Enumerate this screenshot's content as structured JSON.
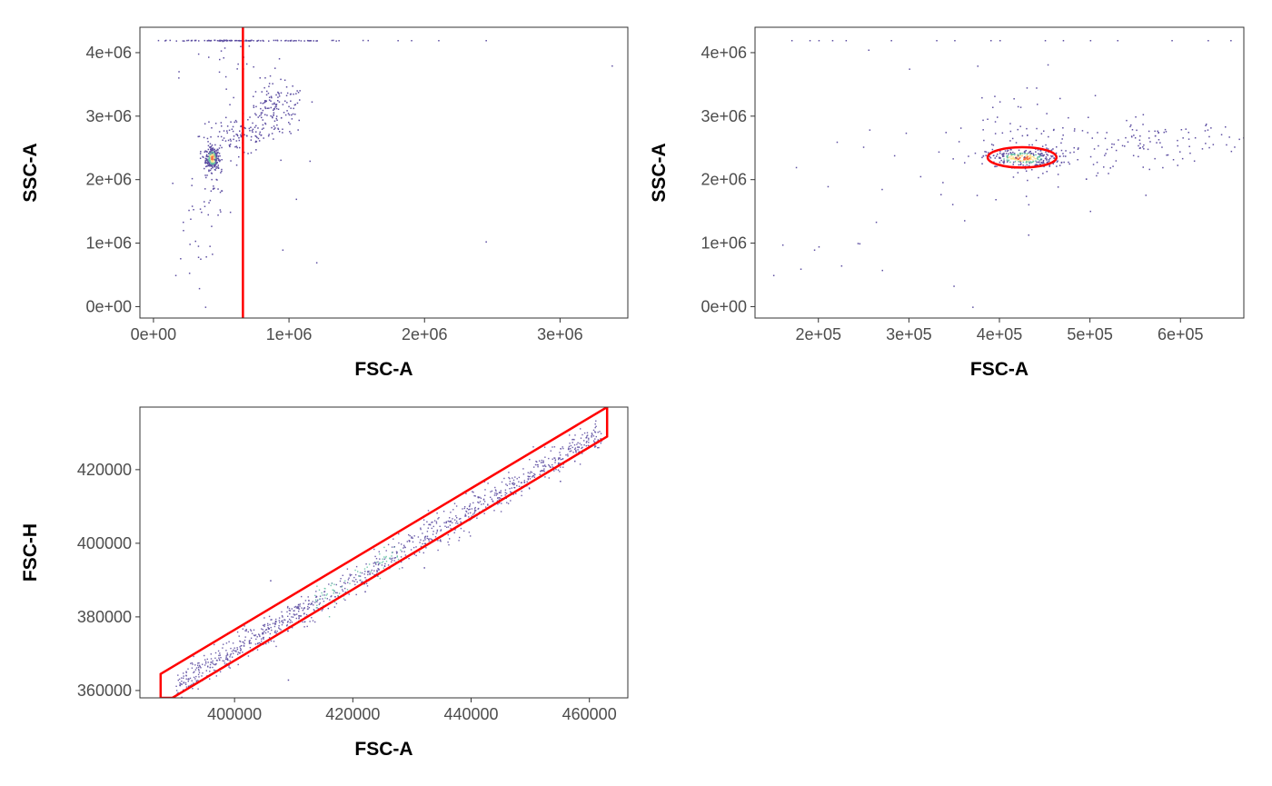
{
  "colors": {
    "gate": "#ff0000",
    "panel_border": "#333333",
    "tick": "#333333",
    "density_low": "#5e4fa2",
    "density_mid": "#66c2a5",
    "density_high": "#fee08b",
    "density_peak": "#f46d43"
  },
  "chart_data": [
    {
      "id": "panel1",
      "type": "scatter",
      "title": "",
      "xlabel": "FSC-A",
      "ylabel": "SSC-A",
      "xlim": [
        -100000,
        3500000
      ],
      "ylim": [
        -180000,
        4400000
      ],
      "xticks": [
        0,
        1000000,
        2000000,
        3000000
      ],
      "xtick_labels": [
        "0e+00",
        "1e+06",
        "2e+06",
        "3e+06"
      ],
      "yticks": [
        0,
        1000000,
        2000000,
        3000000,
        4000000
      ],
      "ytick_labels": [
        "0e+00",
        "1e+06",
        "2e+06",
        "3e+06",
        "4e+06"
      ],
      "gate": {
        "type": "vertical-line",
        "x": 660000
      },
      "clusters": [
        {
          "x": 430000,
          "y": 2350000,
          "sx": 25000,
          "sy": 90000,
          "n": 260
        },
        {
          "x": 620000,
          "y": 2700000,
          "sx": 140000,
          "sy": 150000,
          "n": 110
        },
        {
          "x": 900000,
          "y": 3100000,
          "sx": 110000,
          "sy": 200000,
          "n": 140
        },
        {
          "x": 420000,
          "y": 2000000,
          "sx": 60000,
          "sy": 300000,
          "n": 45
        },
        {
          "x": 280000,
          "y": 1300000,
          "sx": 90000,
          "sy": 450000,
          "n": 22
        },
        {
          "x": 600000,
          "y": 3700000,
          "sx": 200000,
          "sy": 250000,
          "n": 25
        },
        {
          "x": 560000,
          "y": 4200000,
          "sx": 280000,
          "sy": 4000,
          "n": 90
        },
        {
          "x": 1150000,
          "y": 4200000,
          "sx": 180000,
          "sy": 4000,
          "n": 25
        }
      ],
      "points": [
        [
          1800000,
          4200000
        ],
        [
          1900000,
          4200000
        ],
        [
          2100000,
          4200000
        ],
        [
          2450000,
          4200000
        ],
        [
          3380000,
          3800000
        ],
        [
          2450000,
          1030000
        ],
        [
          1200000,
          700000
        ],
        [
          950000,
          900000
        ],
        [
          1150000,
          2300000
        ],
        [
          380000,
          0
        ],
        [
          160000,
          500000
        ],
        [
          1050000,
          1700000
        ]
      ]
    },
    {
      "id": "panel2",
      "type": "scatter",
      "title": "",
      "xlabel": "FSC-A",
      "ylabel": "SSC-A",
      "xlim": [
        130000,
        670000
      ],
      "ylim": [
        -180000,
        4400000
      ],
      "xticks": [
        200000,
        300000,
        400000,
        500000,
        600000
      ],
      "xtick_labels": [
        "2e+05",
        "3e+05",
        "4e+05",
        "5e+05",
        "6e+05"
      ],
      "yticks": [
        0,
        1000000,
        2000000,
        3000000,
        4000000
      ],
      "ytick_labels": [
        "0e+00",
        "1e+06",
        "2e+06",
        "3e+06",
        "4e+06"
      ],
      "gate": {
        "type": "ellipse",
        "cx": 425000,
        "cy": 2350000,
        "rx": 38000,
        "ry": 160000
      },
      "clusters": [
        {
          "x": 425000,
          "y": 2350000,
          "sx": 20000,
          "sy": 70000,
          "n": 280
        },
        {
          "x": 450000,
          "y": 2400000,
          "sx": 40000,
          "sy": 250000,
          "n": 80
        },
        {
          "x": 570000,
          "y": 2600000,
          "sx": 50000,
          "sy": 180000,
          "n": 110
        },
        {
          "x": 430000,
          "y": 2900000,
          "sx": 50000,
          "sy": 400000,
          "n": 30
        },
        {
          "x": 350000,
          "y": 2000000,
          "sx": 90000,
          "sy": 700000,
          "n": 25
        }
      ],
      "points": [
        [
          170000,
          4200000
        ],
        [
          190000,
          4200000
        ],
        [
          200000,
          4200000
        ],
        [
          215000,
          4200000
        ],
        [
          230000,
          4200000
        ],
        [
          280000,
          4200000
        ],
        [
          330000,
          4200000
        ],
        [
          350000,
          4200000
        ],
        [
          390000,
          4200000
        ],
        [
          400000,
          4200000
        ],
        [
          450000,
          4200000
        ],
        [
          470000,
          4200000
        ],
        [
          500000,
          4200000
        ],
        [
          530000,
          4200000
        ],
        [
          590000,
          4200000
        ],
        [
          630000,
          4200000
        ],
        [
          655000,
          4200000
        ],
        [
          150000,
          500000
        ],
        [
          180000,
          600000
        ],
        [
          195000,
          900000
        ],
        [
          200000,
          950000
        ],
        [
          225000,
          650000
        ],
        [
          245000,
          1000000
        ],
        [
          270000,
          580000
        ],
        [
          370000,
          0
        ],
        [
          210000,
          1900000
        ],
        [
          175000,
          2200000
        ],
        [
          220000,
          2600000
        ],
        [
          300000,
          3750000
        ],
        [
          255000,
          4050000
        ],
        [
          160000,
          980000
        ]
      ]
    },
    {
      "id": "panel3",
      "type": "scatter",
      "title": "",
      "xlabel": "FSC-A",
      "ylabel": "FSC-H",
      "xlim": [
        384000,
        466500
      ],
      "ylim": [
        358000,
        437000
      ],
      "xticks": [
        400000,
        420000,
        440000,
        460000
      ],
      "xtick_labels": [
        "400000",
        "420000",
        "440000",
        "460000"
      ],
      "yticks": [
        360000,
        380000,
        400000,
        420000
      ],
      "ytick_labels": [
        "360000",
        "380000",
        "400000",
        "420000"
      ],
      "gate": {
        "type": "polygon",
        "vertices": [
          [
            387500,
            364500
          ],
          [
            463000,
            437000
          ],
          [
            463000,
            429000
          ],
          [
            389500,
            358000
          ],
          [
            387500,
            358000
          ]
        ]
      },
      "clusters": [
        {
          "t0": 390000,
          "t1": 462000,
          "peak": 421000,
          "width": 2200,
          "n": 1100
        }
      ],
      "points": [
        [
          409000,
          363000
        ],
        [
          406000,
          390000
        ],
        [
          432000,
          393500
        ],
        [
          422000,
          387000
        ],
        [
          455000,
          417000
        ]
      ]
    }
  ]
}
